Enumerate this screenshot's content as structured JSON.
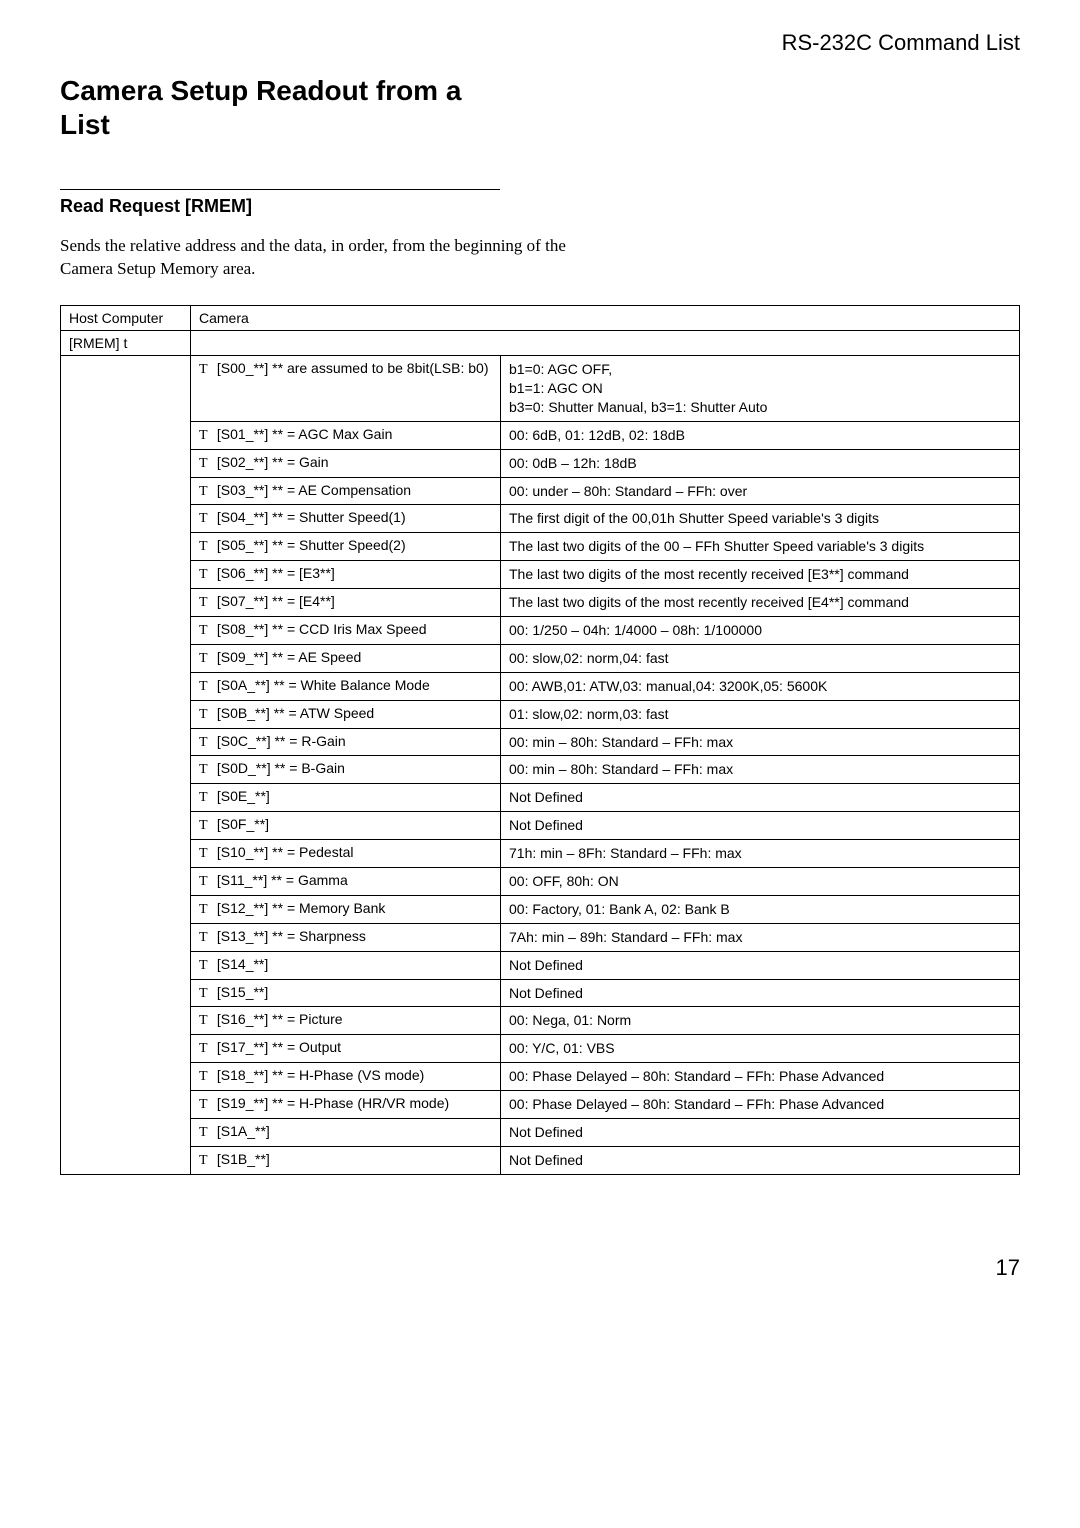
{
  "header": "RS-232C Command List",
  "title": "Camera Setup Readout from a List",
  "section_title": "Read Request [RMEM]",
  "section_desc": "Sends the relative address and the data, in order, from the beginning of the Camera Setup Memory area.",
  "table": {
    "headers": [
      "Host Computer",
      "Camera",
      ""
    ],
    "host_value": "[RMEM] t",
    "rows": [
      {
        "c1": "T",
        "c2": "[S00_**]",
        "c3": "** are assumed to be 8bit(LSB: b0)",
        "d": "b1=0: AGC OFF,\nb1=1: AGC ON\nb3=0: Shutter Manual, b3=1: Shutter Auto"
      },
      {
        "c1": "T",
        "c2": "[S01_**]",
        "c3": "** = AGC Max Gain",
        "d": "00: 6dB, 01: 12dB, 02: 18dB"
      },
      {
        "c1": "T",
        "c2": "[S02_**]",
        "c3": "** = Gain",
        "d": "00: 0dB – 12h: 18dB"
      },
      {
        "c1": "T",
        "c2": "[S03_**]",
        "c3": "** = AE Compensation",
        "d": "00: under – 80h: Standard – FFh: over"
      },
      {
        "c1": "T",
        "c2": "[S04_**]",
        "c3": "** = Shutter Speed(1)",
        "d": "The first digit of the 00,01h Shutter Speed variable's 3 digits"
      },
      {
        "c1": "T",
        "c2": "[S05_**]",
        "c3": "** = Shutter Speed(2)",
        "d": "The last two digits of the 00 – FFh Shutter Speed variable's 3 digits"
      },
      {
        "c1": "T",
        "c2": "[S06_**]",
        "c3": "** = [E3**]",
        "d": "The last two digits of the most recently received [E3**] command"
      },
      {
        "c1": "T",
        "c2": "[S07_**]",
        "c3": "** = [E4**]",
        "d": "The last two digits of the most recently received [E4**] command"
      },
      {
        "c1": "T",
        "c2": "[S08_**]",
        "c3": "** = CCD Iris Max Speed",
        "d": "00: 1/250 – 04h: 1/4000 – 08h: 1/100000"
      },
      {
        "c1": "T",
        "c2": "[S09_**]",
        "c3": "** = AE Speed",
        "d": "00: slow,02: norm,04: fast"
      },
      {
        "c1": "T",
        "c2": "[S0A_**]",
        "c3": "** = White Balance Mode",
        "d": "00: AWB,01: ATW,03: manual,04: 3200K,05: 5600K"
      },
      {
        "c1": "T",
        "c2": "[S0B_**]",
        "c3": "** = ATW Speed",
        "d": "01: slow,02: norm,03: fast"
      },
      {
        "c1": "T",
        "c2": "[S0C_**]",
        "c3": "** = R-Gain",
        "d": "00: min – 80h: Standard – FFh: max"
      },
      {
        "c1": "T",
        "c2": "[S0D_**]",
        "c3": "** = B-Gain",
        "d": "00: min – 80h: Standard – FFh: max"
      },
      {
        "c1": "T",
        "c2": "[S0E_**]",
        "c3": "",
        "d": "Not Defined"
      },
      {
        "c1": "T",
        "c2": "[S0F_**]",
        "c3": "",
        "d": "Not Defined"
      },
      {
        "c1": "T",
        "c2": "[S10_**]",
        "c3": "** = Pedestal",
        "d": "71h: min – 8Fh: Standard – FFh: max"
      },
      {
        "c1": "T",
        "c2": "[S11_**]",
        "c3": "** = Gamma",
        "d": "00: OFF, 80h: ON"
      },
      {
        "c1": "T",
        "c2": "[S12_**]",
        "c3": "** = Memory Bank",
        "d": "00: Factory, 01: Bank A, 02: Bank B"
      },
      {
        "c1": "T",
        "c2": "[S13_**]",
        "c3": "** = Sharpness",
        "d": "7Ah: min – 89h: Standard – FFh: max"
      },
      {
        "c1": "T",
        "c2": "[S14_**]",
        "c3": "",
        "d": "Not Defined"
      },
      {
        "c1": "T",
        "c2": "[S15_**]",
        "c3": "",
        "d": "Not Defined"
      },
      {
        "c1": "T",
        "c2": "[S16_**]",
        "c3": "** = Picture",
        "d": "00: Nega, 01: Norm"
      },
      {
        "c1": "T",
        "c2": "[S17_**]",
        "c3": "** = Output",
        "d": "00: Y/C, 01: VBS"
      },
      {
        "c1": "T",
        "c2": "[S18_**]",
        "c3": "** = H-Phase (VS mode)",
        "d": "00: Phase Delayed – 80h: Standard – FFh: Phase Advanced"
      },
      {
        "c1": "T",
        "c2": "[S19_**]",
        "c3": "** = H-Phase (HR/VR mode)",
        "d": "00: Phase Delayed – 80h: Standard – FFh: Phase Advanced"
      },
      {
        "c1": "T",
        "c2": "[S1A_**]",
        "c3": "",
        "d": "Not Defined"
      },
      {
        "c1": "T",
        "c2": "[S1B_**]",
        "c3": "",
        "d": "Not Defined"
      }
    ]
  },
  "page_number": "17"
}
